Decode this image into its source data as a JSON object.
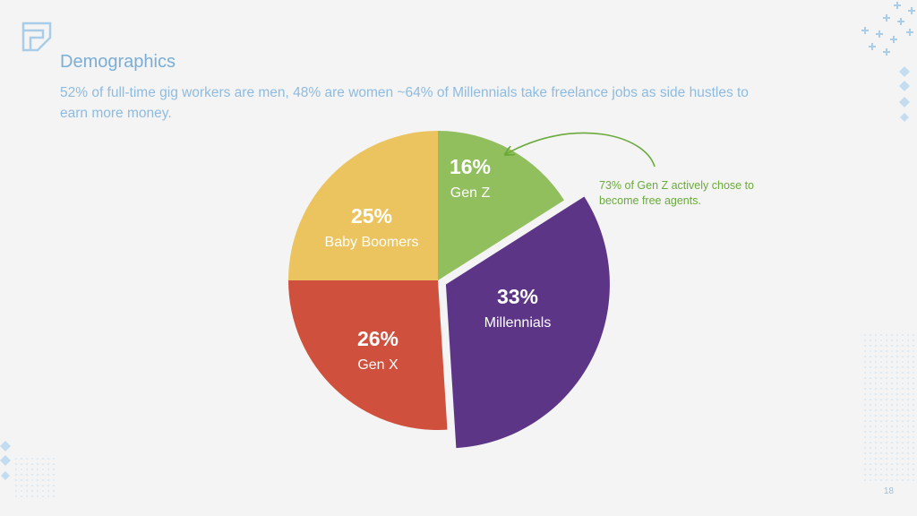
{
  "slide": {
    "title": "Demographics",
    "subtitle": "52% of full-time gig workers are men, 48% are women ~64% of Millennials take freelance jobs as side hustles to earn more money.",
    "annotation": "73% of Gen Z actively chose to become free agents.",
    "page_number": "18",
    "logo_icon": "folded-corner-logo-icon"
  },
  "chart_data": {
    "type": "pie",
    "title": "",
    "slices": [
      {
        "name": "Gen Z",
        "value": 16,
        "label": "16%",
        "color": "#92bf5e",
        "exploded": false
      },
      {
        "name": "Millennials",
        "value": 33,
        "label": "33%",
        "color": "#5c3587",
        "exploded": true
      },
      {
        "name": "Gen X",
        "value": 26,
        "label": "26%",
        "color": "#cf513d",
        "exploded": false
      },
      {
        "name": "Baby Boomers",
        "value": 25,
        "label": "25%",
        "color": "#ecc45f",
        "exploded": false
      }
    ],
    "start": "12 o'clock",
    "direction": "clockwise",
    "callout_target": "Gen Z",
    "callout_color": "#6aaa3a"
  },
  "colors": {
    "background": "#f4f4f4",
    "title": "#7aaed6",
    "subtitle": "#8ebbe0",
    "decoration": "#a9cde9"
  }
}
